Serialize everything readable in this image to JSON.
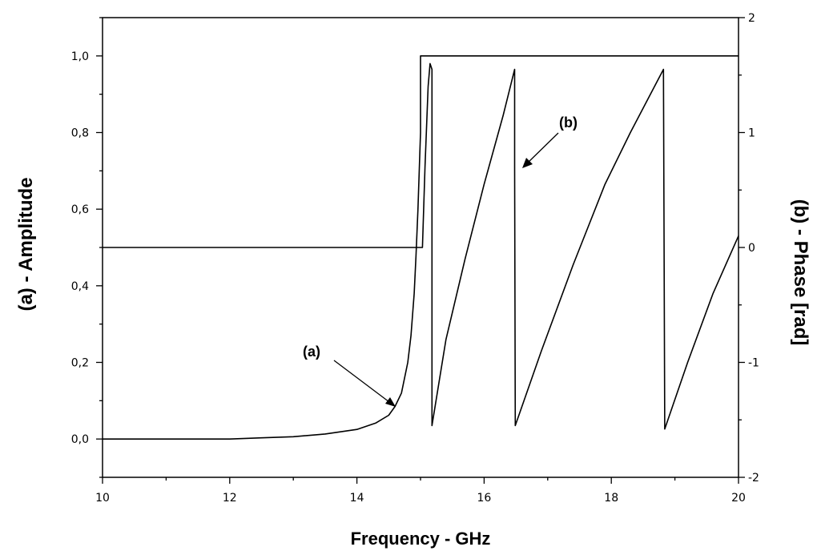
{
  "chart_data": {
    "type": "line",
    "title": "",
    "xlabel": "Frequency - GHz",
    "ylabel": "(a) - Amplitude",
    "y2label": "(b) - Phase  [rad]",
    "xlim": [
      10,
      20
    ],
    "ylim": [
      -0.1,
      1.1
    ],
    "y2lim": [
      -2,
      2
    ],
    "grid": false,
    "legend": "none",
    "x_ticks": [
      "10",
      "12",
      "14",
      "16",
      "18",
      "20"
    ],
    "y_ticks": [
      "0,0",
      "0,2",
      "0,4",
      "0,6",
      "0,8",
      "1,0"
    ],
    "y2_ticks": [
      "-2",
      "-1",
      "0",
      "1",
      "2"
    ],
    "series": [
      {
        "axis": "left",
        "x": [
          10.0,
          12.0,
          12.5,
          13.0,
          13.5,
          14.0,
          14.3,
          14.5,
          14.6,
          14.7,
          14.8,
          14.85,
          14.9,
          14.93,
          14.96,
          14.98,
          15.0,
          15.0,
          20.0
        ],
        "values": [
          0.0,
          0.0,
          0.003,
          0.006,
          0.013,
          0.025,
          0.042,
          0.062,
          0.085,
          0.12,
          0.2,
          0.27,
          0.38,
          0.48,
          0.6,
          0.7,
          0.8,
          1.0,
          1.0
        ]
      },
      {
        "axis": "right",
        "x": [
          10.0,
          15.03,
          15.07,
          15.12,
          15.15,
          15.18,
          15.18,
          15.4,
          15.7,
          16.0,
          16.3,
          16.48,
          16.48,
          16.49,
          16.9,
          17.4,
          17.9,
          18.3,
          18.82,
          18.82,
          18.84,
          19.2,
          19.6,
          20.0
        ],
        "values": [
          0.0,
          0.0,
          0.7,
          1.4,
          1.6,
          1.55,
          -1.55,
          -0.8,
          -0.1,
          0.55,
          1.15,
          1.55,
          0.7,
          -1.55,
          -0.9,
          -0.15,
          0.55,
          1.0,
          1.55,
          1.55,
          -1.58,
          -1.0,
          -0.4,
          0.1
        ]
      }
    ],
    "annotations": [
      "(a)",
      "(b)"
    ]
  },
  "colors": {
    "line": "#000000",
    "background": "#ffffff"
  }
}
